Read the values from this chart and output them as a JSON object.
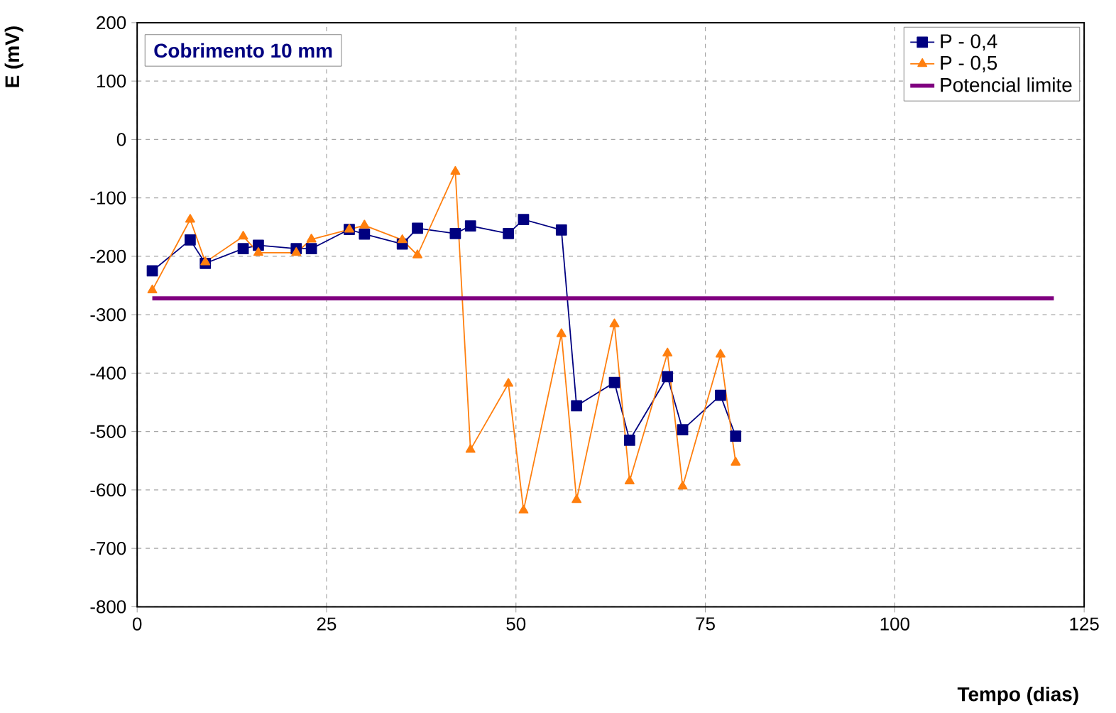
{
  "chart_data": {
    "type": "line",
    "title": "Cobrimento 10 mm",
    "xlabel": "Tempo (dias)",
    "ylabel": "E (mV)",
    "xlim": [
      0,
      125
    ],
    "xticks": [
      0,
      25,
      50,
      75,
      100,
      125
    ],
    "ylim": [
      -800,
      200
    ],
    "yticks": [
      -800,
      -700,
      -600,
      -500,
      -400,
      -300,
      -200,
      -100,
      0,
      100,
      200
    ],
    "grid": true,
    "legend": "top right",
    "line_style": "solid",
    "series": [
      {
        "name": "P - 0,4",
        "color": "#000080",
        "marker": "square",
        "x": [
          2,
          7,
          9,
          14,
          16,
          21,
          23,
          28,
          30,
          35,
          37,
          42,
          44,
          49,
          51,
          56,
          58,
          63,
          65,
          70,
          72,
          77,
          79
        ],
        "values": [
          -225,
          -172,
          -212,
          -187,
          -181,
          -187,
          -187,
          -154,
          -162,
          -179,
          -152,
          -161,
          -148,
          -161,
          -137,
          -155,
          -456,
          -416,
          -515,
          -406,
          -497,
          -438,
          -508
        ]
      },
      {
        "name": "P - 0,5",
        "color": "#ff7f0e",
        "marker": "triangle",
        "x": [
          2,
          7,
          9,
          14,
          16,
          21,
          23,
          28,
          30,
          35,
          37,
          42,
          44,
          49,
          51,
          56,
          58,
          63,
          65,
          70,
          72,
          77,
          79
        ],
        "values": [
          -258,
          -137,
          -210,
          -166,
          -194,
          -194,
          -171,
          -154,
          -147,
          -172,
          -198,
          -55,
          -531,
          -418,
          -635,
          -333,
          -617,
          -316,
          -585,
          -366,
          -594,
          -368,
          -553
        ]
      },
      {
        "name": "Potencial limite",
        "color": "#800080",
        "marker": "none",
        "x": [
          2,
          121
        ],
        "values": [
          -272,
          -272
        ]
      }
    ]
  }
}
